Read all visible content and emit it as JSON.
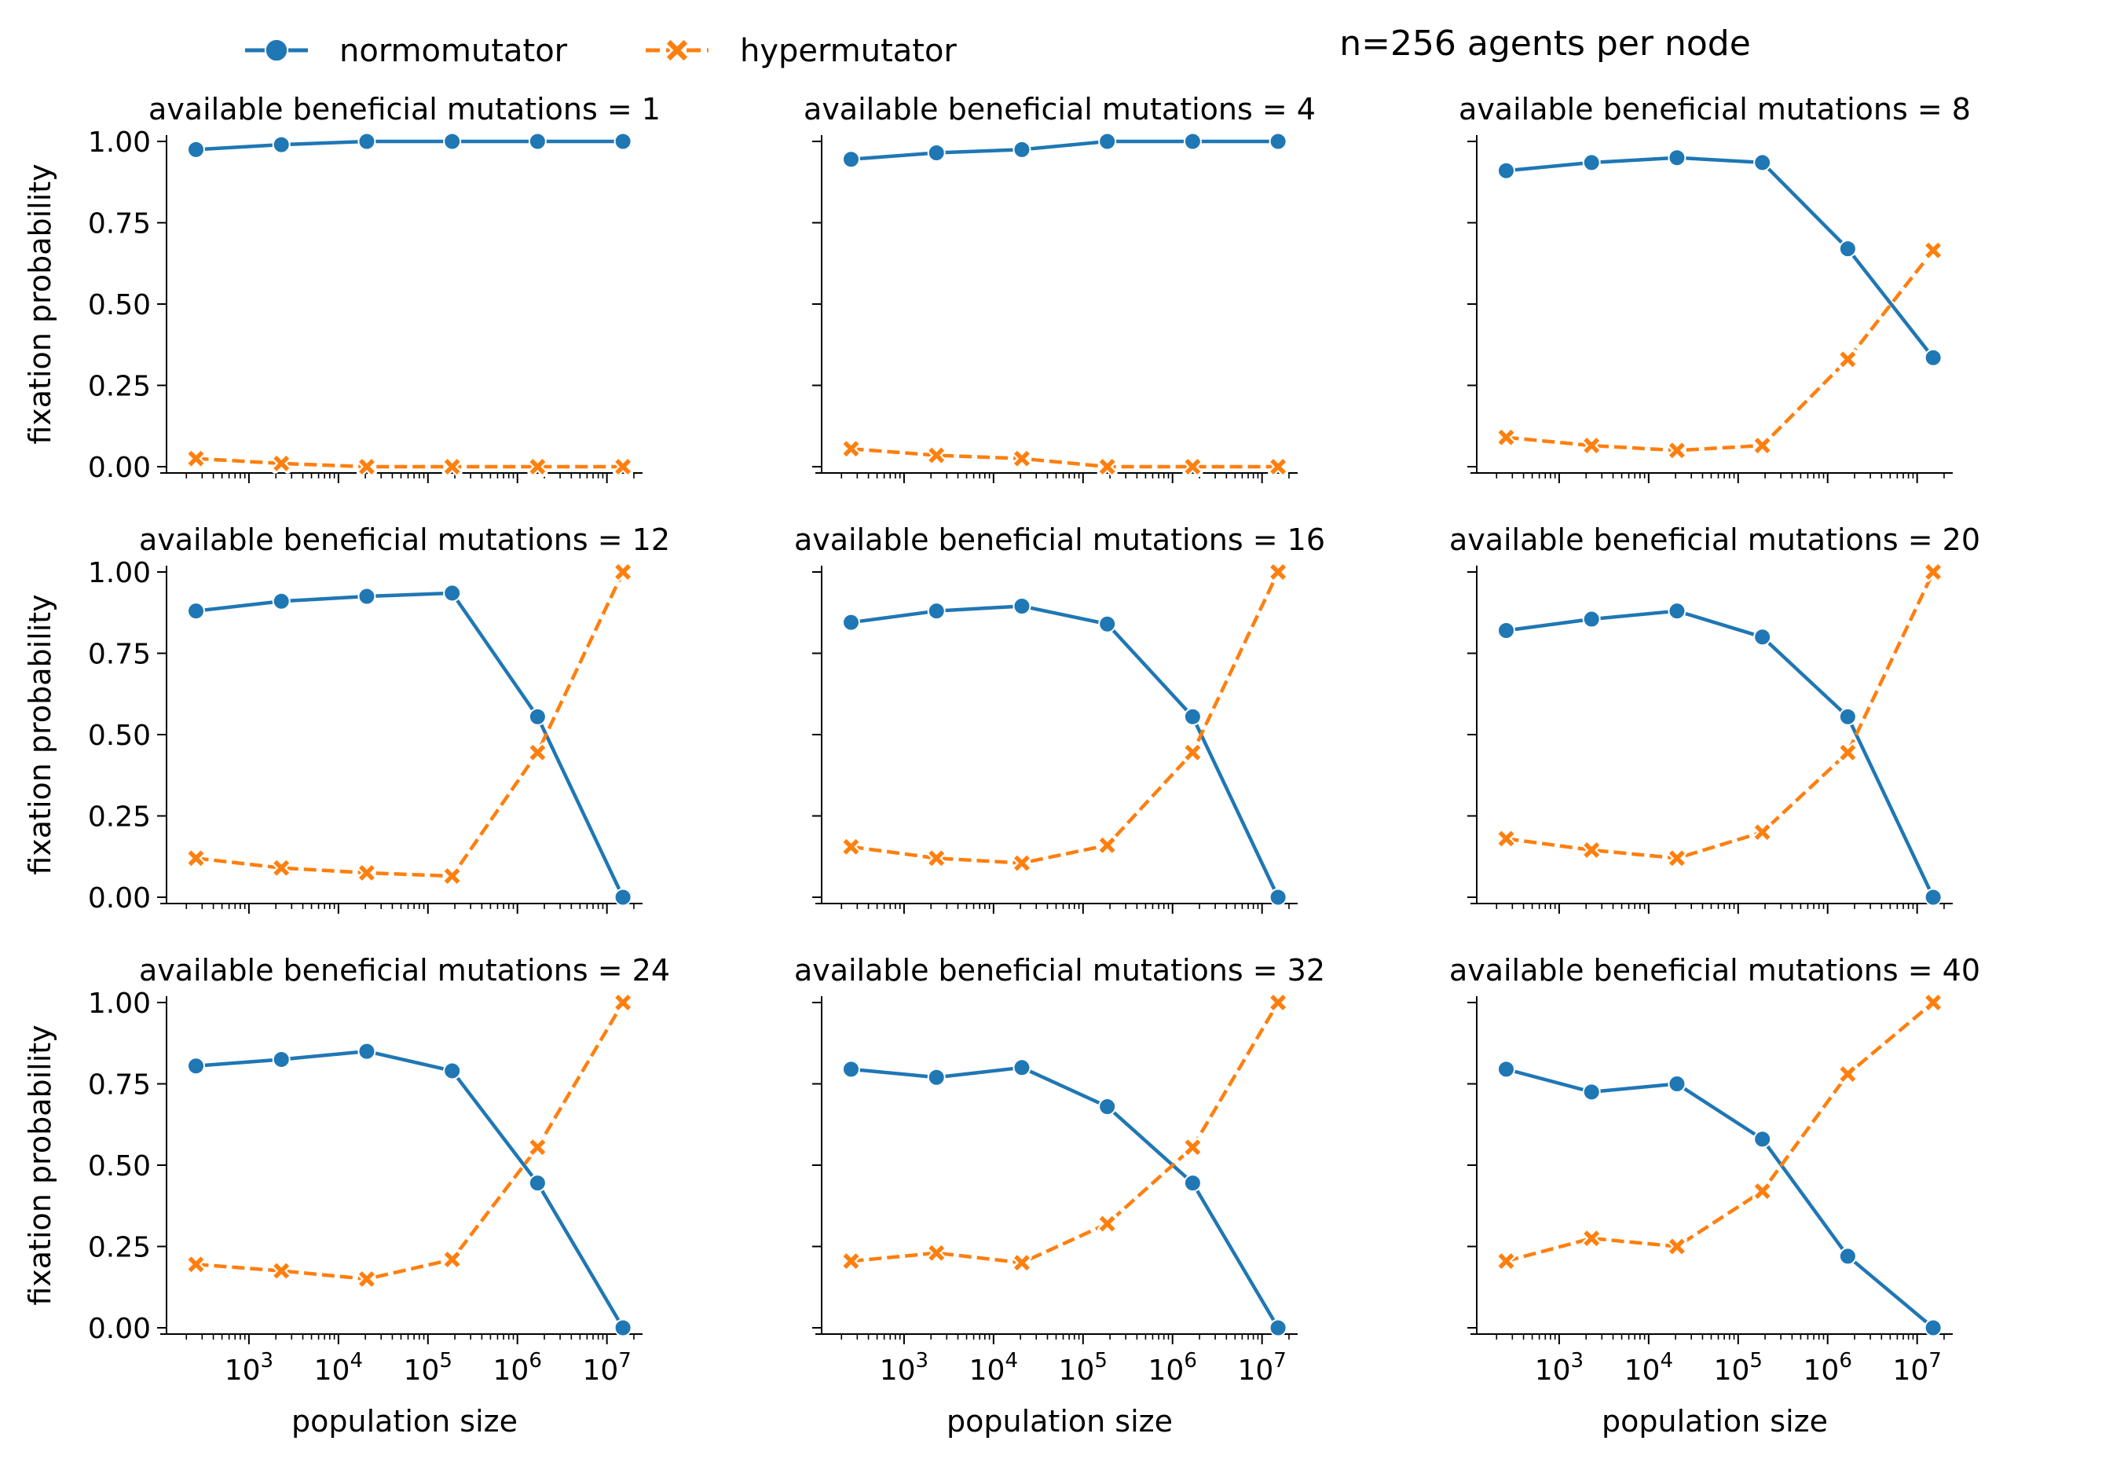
{
  "figure": {
    "title": "n=256 agents per node",
    "legend": {
      "placement": "top-left",
      "entries": [
        {
          "name": "normomutator",
          "color": "#1f77b4",
          "marker": "circle",
          "line": "solid"
        },
        {
          "name": "hypermutator",
          "color": "#ff7f0e",
          "marker": "x",
          "line": "dashed"
        }
      ]
    },
    "xlabel": "population size",
    "ylabel": "fixation probability"
  },
  "chart_data": [
    {
      "type": "line",
      "title": "available beneficial mutations = 1",
      "xscale": "log",
      "xlim": [
        120,
        25000000
      ],
      "ylim": [
        0,
        1
      ],
      "x": [
        256,
        2304,
        20736,
        186624,
        1679616,
        15116544
      ],
      "xticks": [
        "10^3",
        "10^4",
        "10^5",
        "10^6",
        "10^7"
      ],
      "yticks": [
        "0.00",
        "0.25",
        "0.50",
        "0.75",
        "1.00"
      ],
      "series": [
        {
          "name": "normomutator",
          "values": [
            0.975,
            0.99,
            1.0,
            1.0,
            1.0,
            1.0
          ]
        },
        {
          "name": "hypermutator",
          "values": [
            0.025,
            0.01,
            0.0,
            0.0,
            0.0,
            0.0
          ]
        }
      ]
    },
    {
      "type": "line",
      "title": "available beneficial mutations = 4",
      "xscale": "log",
      "xlim": [
        120,
        25000000
      ],
      "ylim": [
        0,
        1
      ],
      "x": [
        256,
        2304,
        20736,
        186624,
        1679616,
        15116544
      ],
      "xticks": [
        "10^3",
        "10^4",
        "10^5",
        "10^6",
        "10^7"
      ],
      "yticks": [
        "0.00",
        "0.25",
        "0.50",
        "0.75",
        "1.00"
      ],
      "series": [
        {
          "name": "normomutator",
          "values": [
            0.945,
            0.965,
            0.975,
            1.0,
            1.0,
            1.0
          ]
        },
        {
          "name": "hypermutator",
          "values": [
            0.055,
            0.035,
            0.025,
            0.0,
            0.0,
            0.0
          ]
        }
      ]
    },
    {
      "type": "line",
      "title": "available beneficial mutations = 8",
      "xscale": "log",
      "xlim": [
        120,
        25000000
      ],
      "ylim": [
        0,
        1
      ],
      "x": [
        256,
        2304,
        20736,
        186624,
        1679616,
        15116544
      ],
      "xticks": [
        "10^3",
        "10^4",
        "10^5",
        "10^6",
        "10^7"
      ],
      "yticks": [
        "0.00",
        "0.25",
        "0.50",
        "0.75",
        "1.00"
      ],
      "series": [
        {
          "name": "normomutator",
          "values": [
            0.91,
            0.935,
            0.95,
            0.935,
            0.67,
            0.335
          ]
        },
        {
          "name": "hypermutator",
          "values": [
            0.09,
            0.065,
            0.05,
            0.065,
            0.33,
            0.665
          ]
        }
      ]
    },
    {
      "type": "line",
      "title": "available beneficial mutations = 12",
      "xscale": "log",
      "xlim": [
        120,
        25000000
      ],
      "ylim": [
        0,
        1
      ],
      "x": [
        256,
        2304,
        20736,
        186624,
        1679616,
        15116544
      ],
      "xticks": [
        "10^3",
        "10^4",
        "10^5",
        "10^6",
        "10^7"
      ],
      "yticks": [
        "0.00",
        "0.25",
        "0.50",
        "0.75",
        "1.00"
      ],
      "series": [
        {
          "name": "normomutator",
          "values": [
            0.88,
            0.91,
            0.925,
            0.935,
            0.555,
            0.0
          ]
        },
        {
          "name": "hypermutator",
          "values": [
            0.12,
            0.09,
            0.075,
            0.065,
            0.445,
            1.0
          ]
        }
      ]
    },
    {
      "type": "line",
      "title": "available beneficial mutations = 16",
      "xscale": "log",
      "xlim": [
        120,
        25000000
      ],
      "ylim": [
        0,
        1
      ],
      "x": [
        256,
        2304,
        20736,
        186624,
        1679616,
        15116544
      ],
      "xticks": [
        "10^3",
        "10^4",
        "10^5",
        "10^6",
        "10^7"
      ],
      "yticks": [
        "0.00",
        "0.25",
        "0.50",
        "0.75",
        "1.00"
      ],
      "series": [
        {
          "name": "normomutator",
          "values": [
            0.845,
            0.88,
            0.895,
            0.84,
            0.555,
            0.0
          ]
        },
        {
          "name": "hypermutator",
          "values": [
            0.155,
            0.12,
            0.105,
            0.16,
            0.445,
            1.0
          ]
        }
      ]
    },
    {
      "type": "line",
      "title": "available beneficial mutations = 20",
      "xscale": "log",
      "xlim": [
        120,
        25000000
      ],
      "ylim": [
        0,
        1
      ],
      "x": [
        256,
        2304,
        20736,
        186624,
        1679616,
        15116544
      ],
      "xticks": [
        "10^3",
        "10^4",
        "10^5",
        "10^6",
        "10^7"
      ],
      "yticks": [
        "0.00",
        "0.25",
        "0.50",
        "0.75",
        "1.00"
      ],
      "series": [
        {
          "name": "normomutator",
          "values": [
            0.82,
            0.855,
            0.88,
            0.8,
            0.555,
            0.0
          ]
        },
        {
          "name": "hypermutator",
          "values": [
            0.18,
            0.145,
            0.12,
            0.2,
            0.445,
            1.0
          ]
        }
      ]
    },
    {
      "type": "line",
      "title": "available beneficial mutations = 24",
      "xscale": "log",
      "xlim": [
        120,
        25000000
      ],
      "ylim": [
        0,
        1
      ],
      "x": [
        256,
        2304,
        20736,
        186624,
        1679616,
        15116544
      ],
      "xticks": [
        "10^3",
        "10^4",
        "10^5",
        "10^6",
        "10^7"
      ],
      "yticks": [
        "0.00",
        "0.25",
        "0.50",
        "0.75",
        "1.00"
      ],
      "series": [
        {
          "name": "normomutator",
          "values": [
            0.805,
            0.825,
            0.85,
            0.79,
            0.445,
            0.0
          ]
        },
        {
          "name": "hypermutator",
          "values": [
            0.195,
            0.175,
            0.15,
            0.21,
            0.555,
            1.0
          ]
        }
      ]
    },
    {
      "type": "line",
      "title": "available beneficial mutations = 32",
      "xscale": "log",
      "xlim": [
        120,
        25000000
      ],
      "ylim": [
        0,
        1
      ],
      "x": [
        256,
        2304,
        20736,
        186624,
        1679616,
        15116544
      ],
      "xticks": [
        "10^3",
        "10^4",
        "10^5",
        "10^6",
        "10^7"
      ],
      "yticks": [
        "0.00",
        "0.25",
        "0.50",
        "0.75",
        "1.00"
      ],
      "series": [
        {
          "name": "normomutator",
          "values": [
            0.795,
            0.77,
            0.8,
            0.68,
            0.445,
            0.0
          ]
        },
        {
          "name": "hypermutator",
          "values": [
            0.205,
            0.23,
            0.2,
            0.32,
            0.555,
            1.0
          ]
        }
      ]
    },
    {
      "type": "line",
      "title": "available beneficial mutations = 40",
      "xscale": "log",
      "xlim": [
        120,
        25000000
      ],
      "ylim": [
        0,
        1
      ],
      "x": [
        256,
        2304,
        20736,
        186624,
        1679616,
        15116544
      ],
      "xticks": [
        "10^3",
        "10^4",
        "10^5",
        "10^6",
        "10^7"
      ],
      "yticks": [
        "0.00",
        "0.25",
        "0.50",
        "0.75",
        "1.00"
      ],
      "series": [
        {
          "name": "normomutator",
          "values": [
            0.795,
            0.725,
            0.75,
            0.58,
            0.22,
            0.0
          ]
        },
        {
          "name": "hypermutator",
          "values": [
            0.205,
            0.275,
            0.25,
            0.42,
            0.78,
            1.0
          ]
        }
      ]
    }
  ]
}
